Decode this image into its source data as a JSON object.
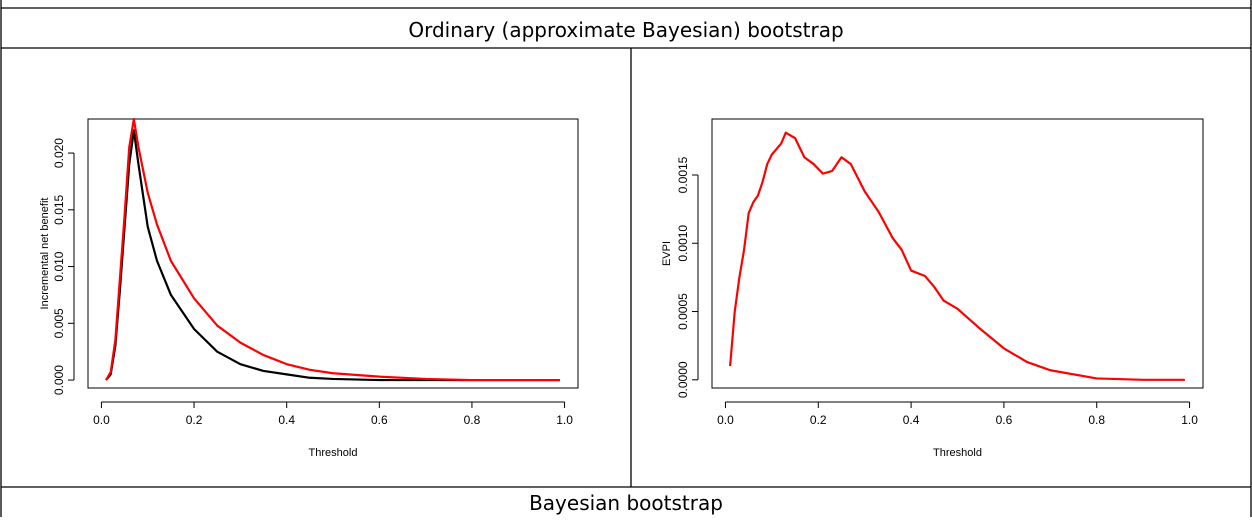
{
  "table": {
    "headers": [
      "Ordinary (approximate Bayesian) bootstrap",
      "Bayesian bootstrap"
    ]
  },
  "chart_data": [
    {
      "type": "line",
      "xlabel": "Threshold",
      "ylabel": "Incremental net benefit",
      "x": [
        0.01,
        0.02,
        0.03,
        0.04,
        0.05,
        0.06,
        0.07,
        0.08,
        0.1,
        0.12,
        0.15,
        0.2,
        0.25,
        0.3,
        0.35,
        0.4,
        0.45,
        0.5,
        0.6,
        0.7,
        0.8,
        0.9,
        0.99
      ],
      "series": [
        {
          "color": "#000000",
          "values": [
            0,
            0.0005,
            0.003,
            0.008,
            0.0135,
            0.019,
            0.022,
            0.019,
            0.0135,
            0.0105,
            0.0075,
            0.0045,
            0.0025,
            0.0014,
            0.0008,
            0.0005,
            0.0002,
            0.0001,
            0,
            0,
            0,
            0,
            0
          ]
        },
        {
          "color": "#ff0000",
          "values": [
            0,
            0.0007,
            0.0035,
            0.009,
            0.0145,
            0.0205,
            0.023,
            0.0205,
            0.0165,
            0.0137,
            0.0105,
            0.0072,
            0.0048,
            0.0033,
            0.0022,
            0.0014,
            0.0009,
            0.0006,
            0.0003,
            0.0001,
            0,
            0,
            0
          ]
        }
      ],
      "xlim": [
        -0.029,
        1.029
      ],
      "xticks": [
        {
          "value": 0,
          "label": "0.0"
        },
        0.2,
        0.4,
        0.6,
        0.8,
        {
          "value": 1,
          "label": "1.0"
        }
      ],
      "ylim": [
        -0.0007,
        0.023
      ],
      "yticks": [
        {
          "value": 0,
          "label": "0.000"
        },
        0.005,
        {
          "value": 0.01,
          "label": "0.010"
        },
        0.015,
        {
          "value": 0.02,
          "label": "0.020"
        }
      ]
    },
    {
      "type": "line",
      "xlabel": "Threshold",
      "ylabel": "EVPI",
      "x": [
        0.01,
        0.02,
        0.03,
        0.04,
        0.05,
        0.06,
        0.07,
        0.08,
        0.09,
        0.1,
        0.12,
        0.13,
        0.15,
        0.17,
        0.19,
        0.21,
        0.23,
        0.25,
        0.27,
        0.3,
        0.33,
        0.36,
        0.38,
        0.4,
        0.43,
        0.45,
        0.47,
        0.5,
        0.55,
        0.6,
        0.65,
        0.7,
        0.8,
        0.9,
        0.99
      ],
      "series": [
        {
          "color": "#ff0000",
          "values": [
            0.0001,
            0.0005,
            0.00075,
            0.00095,
            0.00122,
            0.0013,
            0.00135,
            0.00145,
            0.00158,
            0.00165,
            0.00173,
            0.00181,
            0.00177,
            0.00163,
            0.00158,
            0.00151,
            0.00153,
            0.00163,
            0.00158,
            0.00138,
            0.00123,
            0.00104,
            0.00095,
            0.0008,
            0.00076,
            0.00068,
            0.00058,
            0.00052,
            0.00037,
            0.00023,
            0.00013,
            7e-05,
            1e-05,
            0,
            0
          ]
        }
      ],
      "xlim": [
        -0.029,
        1.029
      ],
      "xticks": [
        {
          "value": 0,
          "label": "0.0"
        },
        0.2,
        0.4,
        0.6,
        0.8,
        {
          "value": 1,
          "label": "1.0"
        }
      ],
      "ylim": [
        -6e-05,
        0.00191
      ],
      "yticks": [
        {
          "value": 0,
          "label": "0.0000"
        },
        0.0005,
        {
          "value": 0.001,
          "label": "0.0010"
        },
        0.0015
      ]
    }
  ]
}
